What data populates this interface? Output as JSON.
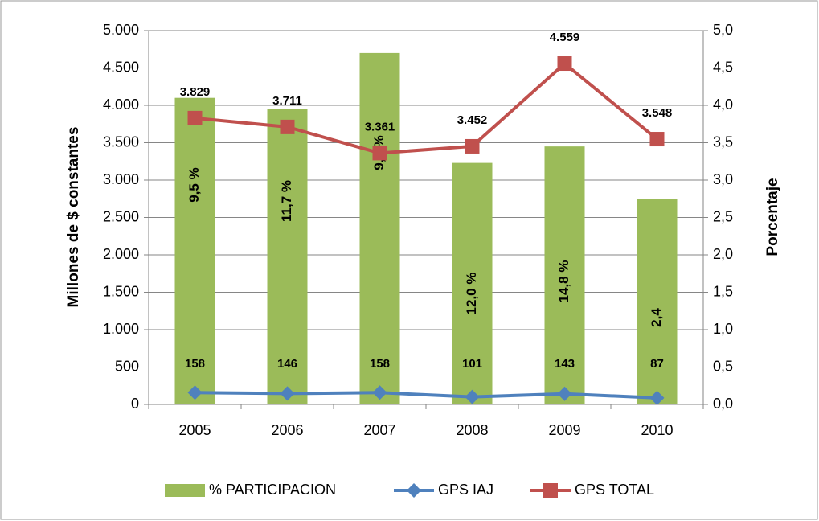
{
  "chart_data": {
    "type": "bar-line",
    "y_label": "Millones de $ constantes",
    "y2_label": "Porcentaje",
    "categories": [
      "2005",
      "2006",
      "2007",
      "2008",
      "2009",
      "2010"
    ],
    "series": [
      {
        "name": "% PARTICIPACION",
        "type": "bar",
        "axis": "y2",
        "color": "#9bbb59",
        "values": [
          4.1,
          3.95,
          4.7,
          3.23,
          3.45,
          2.75
        ]
      },
      {
        "name": "GPS IAJ",
        "type": "line",
        "axis": "y",
        "color": "#4f81bd",
        "marker": "diamond",
        "values": [
          158,
          146,
          158,
          101,
          143,
          87
        ]
      },
      {
        "name": "GPS TOTAL",
        "type": "line",
        "axis": "y",
        "color": "#c0504d",
        "marker": "square",
        "values": [
          3829,
          3711,
          3361,
          3452,
          4559,
          3548
        ],
        "value_labels": [
          "3.829",
          "3.711",
          "3.361",
          "3.452",
          "4.559",
          "3.548"
        ]
      }
    ],
    "annotations": [
      "9,5 %",
      "11,7 %",
      "9,7 %",
      "12,0 %",
      "14,8 %",
      "2,4"
    ],
    "ylim": [
      0,
      5000
    ],
    "yticks": [
      0,
      500,
      {
        "value": 1000,
        "label": "1.000"
      },
      {
        "value": 1500,
        "label": "1.500"
      },
      {
        "value": 2000,
        "label": "2.000"
      },
      {
        "value": 2500,
        "label": "2.500"
      },
      {
        "value": 3000,
        "label": "3.000"
      },
      {
        "value": 3500,
        "label": "3.500"
      },
      {
        "value": 4000,
        "label": "4.000"
      },
      {
        "value": 4500,
        "label": "4.500"
      },
      {
        "value": 5000,
        "label": "5.000"
      }
    ],
    "y2lim": [
      0,
      5
    ],
    "y2ticks": [
      {
        "value": 0,
        "label": "0,0"
      },
      {
        "value": 0.5,
        "label": "0,5"
      },
      {
        "value": 1,
        "label": "1,0"
      },
      {
        "value": 1.5,
        "label": "1,5"
      },
      {
        "value": 2,
        "label": "2,0"
      },
      {
        "value": 2.5,
        "label": "2,5"
      },
      {
        "value": 3,
        "label": "3,0"
      },
      {
        "value": 3.5,
        "label": "3,5"
      },
      {
        "value": 4,
        "label": "4,0"
      },
      {
        "value": 4.5,
        "label": "4,5"
      },
      {
        "value": 5,
        "label": "5,0"
      }
    ],
    "grid": true,
    "legend": "bottom"
  }
}
